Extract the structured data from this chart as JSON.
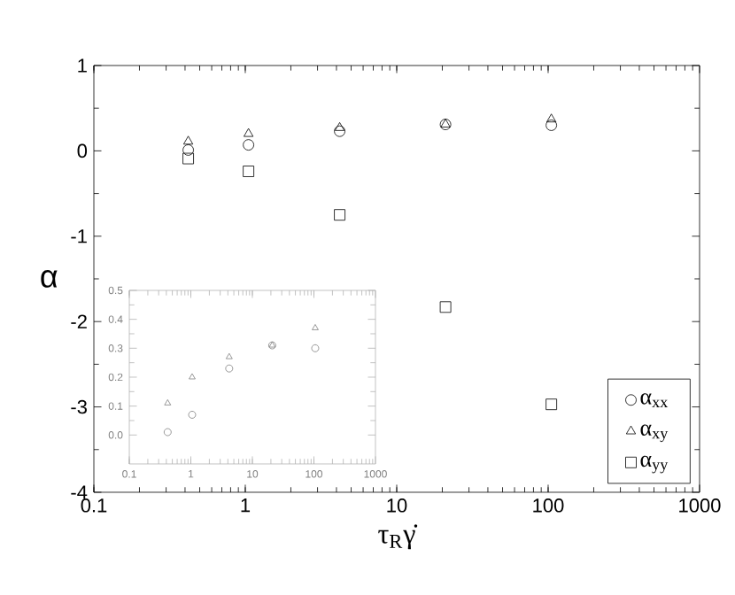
{
  "chart_data": [
    {
      "type": "scatter",
      "xlabel": "τ$_{R}$γ̇",
      "ylabel": "α",
      "x": [
        0.42,
        1.05,
        4.2,
        21,
        105
      ],
      "series": [
        {
          "name": "α$_{xx}$",
          "color": "#000000",
          "marker": "circle",
          "values": [
            0.01,
            0.07,
            0.23,
            0.31,
            0.3
          ]
        },
        {
          "name": "α$_{xy}$",
          "color": "#000000",
          "marker": "triangle",
          "values": [
            0.11,
            0.2,
            0.27,
            0.31,
            0.37
          ]
        },
        {
          "name": "α$_{yy}$",
          "color": "#000000",
          "marker": "square",
          "values": [
            -0.09,
            -0.24,
            -0.75,
            -1.83,
            -2.97
          ]
        }
      ],
      "xlim": [
        0.1,
        1000
      ],
      "ylim": [
        -4,
        1
      ],
      "xticks": [
        0.1,
        1,
        10,
        100,
        1000
      ],
      "yticks": [
        -4,
        -3,
        -2,
        -1,
        0,
        1
      ],
      "log": "x",
      "grid": false,
      "legend": "bottom right"
    },
    {
      "type": "scatter",
      "x": [
        0.42,
        1.05,
        4.2,
        21,
        105
      ],
      "series": [
        {
          "color": "#808080",
          "marker": "circle",
          "values": [
            0.01,
            0.07,
            0.23,
            0.31,
            0.3
          ]
        },
        {
          "color": "#808080",
          "marker": "triangle",
          "values": [
            0.11,
            0.2,
            0.27,
            0.31,
            0.37
          ]
        }
      ],
      "xlim": [
        0.1,
        1000
      ],
      "ylim": [
        -0.1,
        0.5
      ],
      "xticks": [
        0.1,
        1,
        10,
        100,
        1000
      ],
      "yticks": [
        {
          "value": 0,
          "label": "0.0"
        },
        0.1,
        0.2,
        0.3,
        0.4,
        0.5
      ],
      "log": "x",
      "grid": false,
      "legend": false
    }
  ]
}
